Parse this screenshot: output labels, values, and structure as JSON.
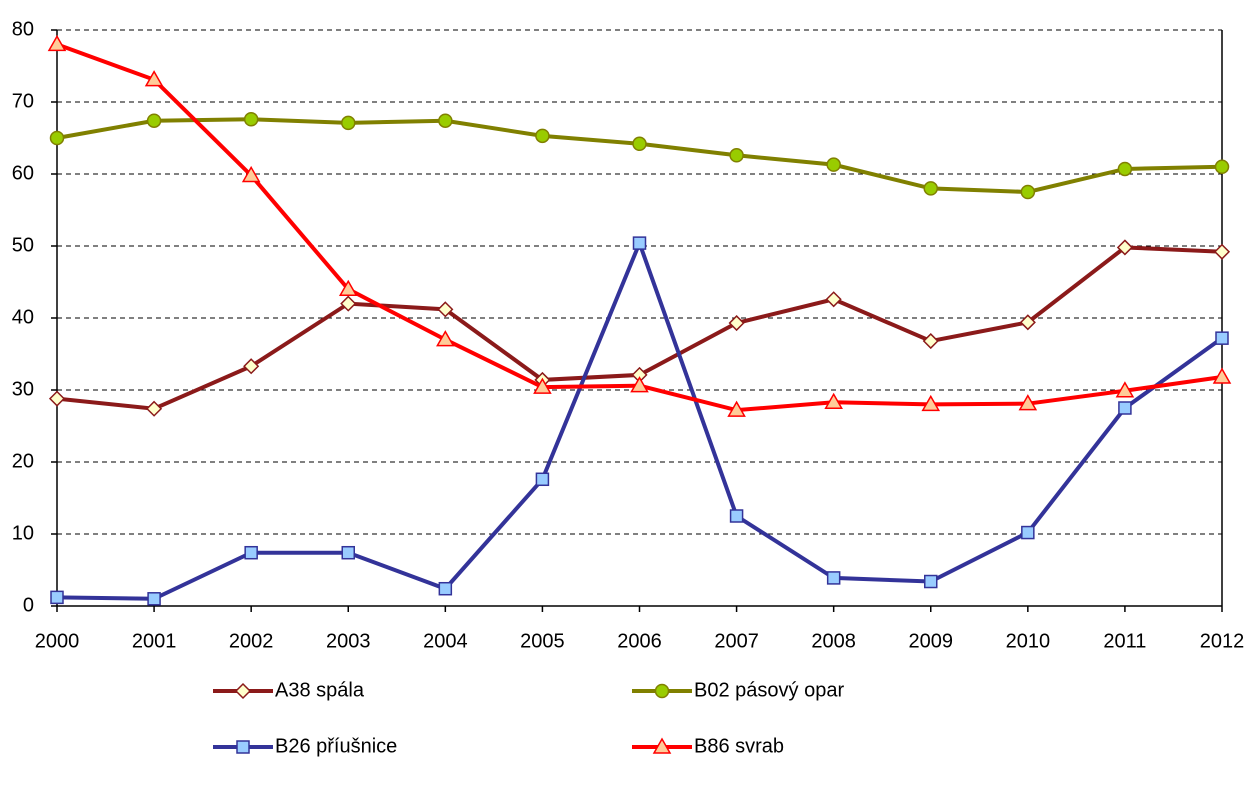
{
  "chart_data": {
    "type": "line",
    "categories": [
      "2000",
      "2001",
      "2002",
      "2003",
      "2004",
      "2005",
      "2006",
      "2007",
      "2008",
      "2009",
      "2010",
      "2011",
      "2012"
    ],
    "series": [
      {
        "name": "A38 spála",
        "color": "#8b1a1a",
        "marker": "diamond",
        "marker_color": "#ffffcc",
        "values": [
          28.8,
          27.4,
          33.3,
          42.0,
          41.2,
          31.4,
          32.1,
          39.3,
          42.6,
          36.8,
          39.4,
          49.8,
          49.2
        ]
      },
      {
        "name": "B02 pásový opar",
        "color": "#808000",
        "marker": "circle",
        "marker_color": "#99cc00",
        "values": [
          65.0,
          67.4,
          67.6,
          67.1,
          67.4,
          65.3,
          64.2,
          62.6,
          61.3,
          58.0,
          57.5,
          60.7,
          61.0
        ]
      },
      {
        "name": "B26 příušnice",
        "color": "#333399",
        "marker": "square",
        "marker_color": "#99ccff",
        "values": [
          1.2,
          1.0,
          7.4,
          7.4,
          2.4,
          17.6,
          50.4,
          12.5,
          3.9,
          3.4,
          10.2,
          27.5,
          37.2
        ]
      },
      {
        "name": "B86 svrab",
        "color": "#ff0000",
        "marker": "triangle",
        "marker_color": "#ffcc99",
        "values": [
          78.0,
          73.1,
          59.8,
          44.0,
          37.0,
          30.4,
          30.6,
          27.2,
          28.3,
          28.0,
          28.1,
          29.9,
          31.8
        ]
      }
    ],
    "ylim": [
      0,
      80
    ],
    "yticks": [
      0,
      10,
      20,
      30,
      40,
      50,
      60,
      70,
      80
    ],
    "grid": true
  }
}
